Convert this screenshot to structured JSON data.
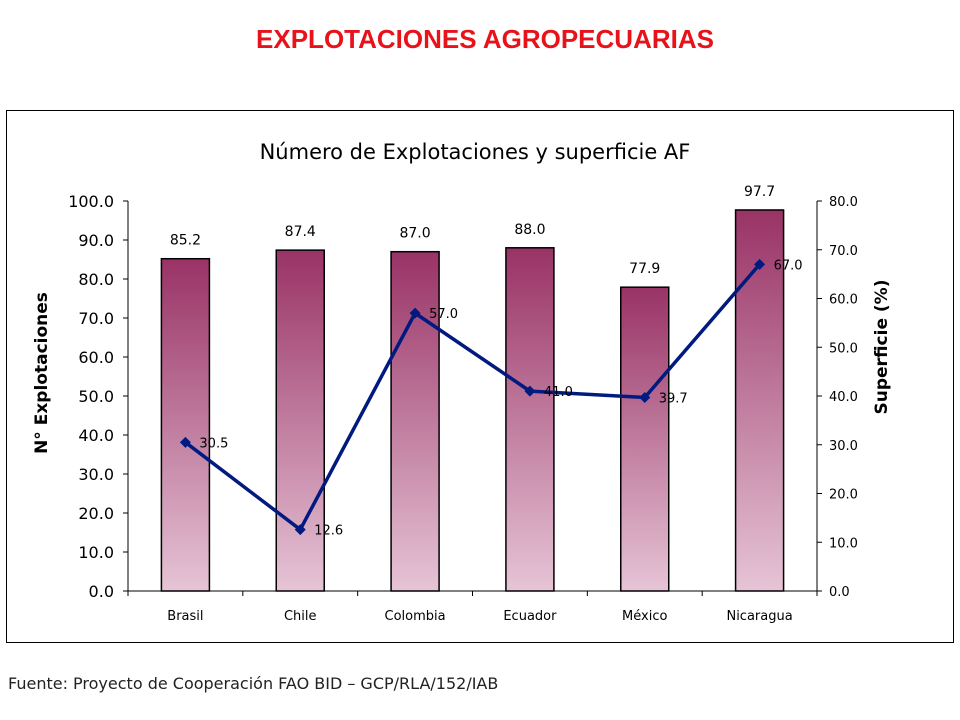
{
  "slide": {
    "title": "EXPLOTACIONES AGROPECUARIAS",
    "source": "Fuente: Proyecto de Cooperación FAO BID – GCP/RLA/152/IAB"
  },
  "chart_data": {
    "type": "bar",
    "title": "Número de Explotaciones y superficie AF",
    "categories": [
      "Brasil",
      "Chile",
      "Colombia",
      "Ecuador",
      "México",
      "Nicaragua"
    ],
    "series": [
      {
        "axis": "left",
        "type": "bar",
        "values": [
          85.2,
          87.4,
          87.0,
          88.0,
          77.9,
          97.7
        ],
        "labels": [
          "85.2",
          "87.4",
          "87.0",
          "88.0",
          "77.9",
          "97.7"
        ],
        "color_top": "#993366",
        "color_bottom": "#e6c4d6"
      },
      {
        "axis": "right",
        "type": "line",
        "values": [
          30.5,
          12.6,
          57.0,
          41.0,
          39.7,
          67.0
        ],
        "labels": [
          "30.5",
          "12.6",
          "57.0",
          "41.0",
          "39.7",
          "67.0"
        ],
        "color": "#001a80"
      }
    ],
    "ylabel": "N° Explotaciones",
    "y2label": "Superficie (%)",
    "ylim": [
      0,
      100
    ],
    "y2lim": [
      0,
      80
    ],
    "yticks": [
      "0.0",
      "10.0",
      "20.0",
      "30.0",
      "40.0",
      "50.0",
      "60.0",
      "70.0",
      "80.0",
      "90.0",
      "100.0"
    ],
    "y2ticks": [
      "0.0",
      "10.0",
      "20.0",
      "30.0",
      "40.0",
      "50.0",
      "60.0",
      "70.0",
      "80.0"
    ],
    "grid": false,
    "legend": "none"
  }
}
